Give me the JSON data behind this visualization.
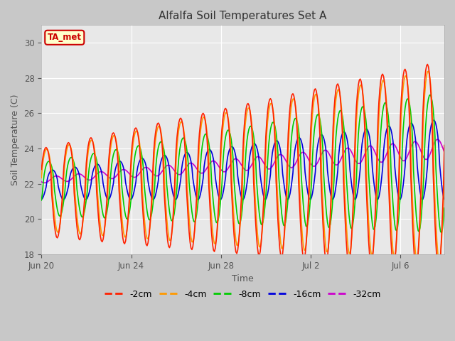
{
  "title": "Alfalfa Soil Temperatures Set A",
  "xlabel": "Time",
  "ylabel": "Soil Temperature (C)",
  "ylim": [
    18,
    31
  ],
  "yticks": [
    18,
    20,
    22,
    24,
    26,
    28,
    30
  ],
  "annotation_label": "TA_met",
  "annotation_color": "#cc0000",
  "annotation_bg": "#ffffcc",
  "fig_bg_color": "#c8c8c8",
  "plot_bg_color": "#e8e8e8",
  "line_colors": {
    "-2cm": "#ff2000",
    "-4cm": "#ff9900",
    "-8cm": "#00cc00",
    "-16cm": "#0000dd",
    "-32cm": "#cc00cc"
  },
  "line_width": 1.2,
  "xtick_labels": [
    "Jun 20",
    "Jun 24",
    "Jun 28",
    "Jul 2",
    "Jul 6"
  ]
}
